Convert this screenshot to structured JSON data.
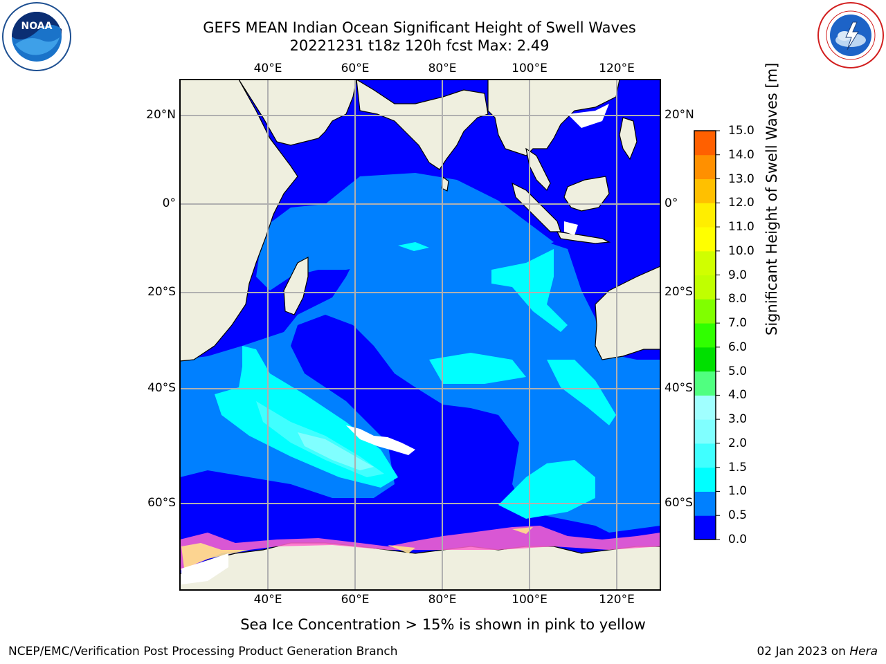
{
  "header": {
    "title": "GEFS MEAN Indian Ocean Significant Height of Swell Waves",
    "subtitle": "20221231 t18z 120h fcst   Max: 2.49"
  },
  "logos": {
    "left": {
      "name": "noaa-logo",
      "text": "NOAA",
      "ring_text": "NATIONAL OCEANIC AND ATMOSPHERIC ADMINISTRATION · U.S. DEPARTMENT OF COMMERCE"
    },
    "right": {
      "name": "nws-logo",
      "ring_text": "NATIONAL WEATHER SERVICE"
    }
  },
  "map": {
    "lon_labels": [
      "40°E",
      "60°E",
      "80°E",
      "100°E",
      "120°E"
    ],
    "lat_labels": [
      "20°N",
      "0°",
      "20°S",
      "40°S",
      "60°S"
    ],
    "lon_range": [
      20,
      130
    ],
    "lat_range": [
      -78,
      28
    ],
    "grid": true,
    "land_color": "#efefdf",
    "ocean_base_color": "#0000ff"
  },
  "colorbar": {
    "title": "Significant Height of Swell Waves [m]",
    "ticks": [
      "15.0",
      "14.0",
      "13.0",
      "12.0",
      "11.0",
      "10.0",
      "9.0",
      "8.0",
      "7.0",
      "6.0",
      "5.0",
      "4.0",
      "3.0",
      "2.0",
      "1.5",
      "1.0",
      "0.5",
      "0.0"
    ],
    "colors": [
      "#0000ff",
      "#0080ff",
      "#00ffff",
      "#40ffff",
      "#80ffff",
      "#a0ffff",
      "#50ff80",
      "#00e000",
      "#30ff00",
      "#80ff00",
      "#c0ff00",
      "#d0ff00",
      "#ffff00",
      "#ffee00",
      "#ffc000",
      "#ff9000",
      "#ff6000",
      "#ff3000",
      "#ff0000"
    ]
  },
  "caption": "Sea Ice Concentration > 15% is shown in pink to yellow",
  "footer": {
    "left": "NCEP/EMC/Verification Post Processing Product Generation Branch",
    "right_date": "02 Jan 2023 on ",
    "right_host": "Hera"
  }
}
